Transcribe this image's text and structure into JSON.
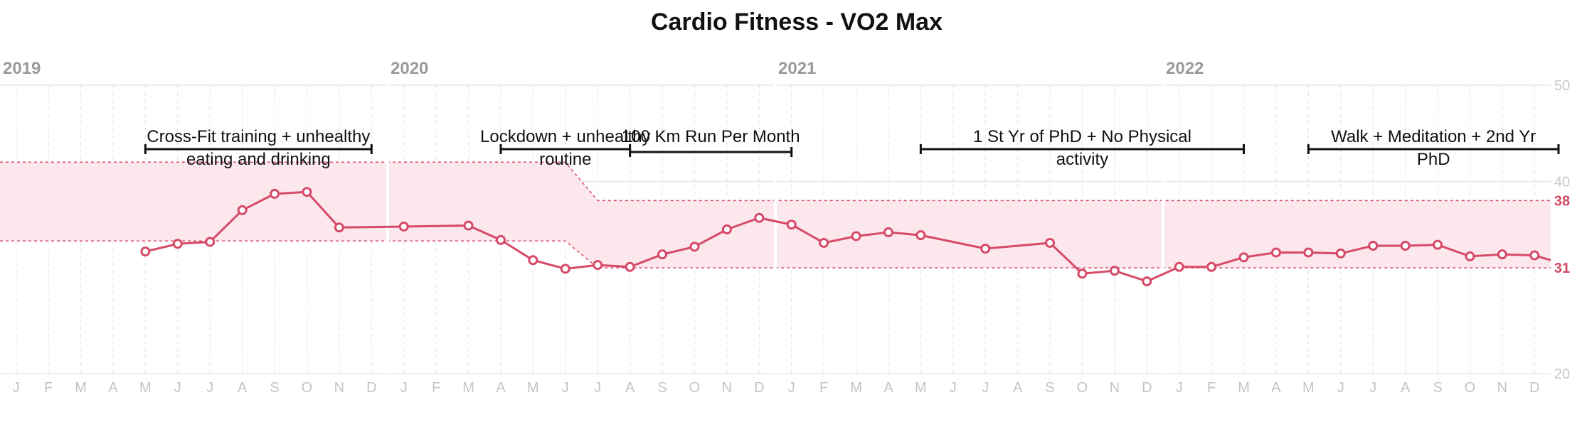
{
  "chart_data": {
    "type": "line",
    "title": "Cardio Fitness - VO2 Max",
    "years": [
      "2019",
      "2020",
      "2021",
      "2022"
    ],
    "month_labels": [
      "J",
      "F",
      "M",
      "A",
      "M",
      "J",
      "J",
      "A",
      "S",
      "O",
      "N",
      "D"
    ],
    "ylim": [
      20,
      50
    ],
    "y_ticks": [
      20,
      40,
      50
    ],
    "band_labels": [
      38,
      31
    ],
    "grid": true,
    "colors": {
      "line": "#d64a68",
      "band": "#fbe7ec",
      "band_edge": "#d64a68",
      "grid": "#e6e6e6",
      "bracket": "#111111"
    },
    "series": [
      {
        "values": [
          {
            "x": "2019-05",
            "y": 32.7
          },
          {
            "x": "2019-06",
            "y": 33.5
          },
          {
            "x": "2019-07",
            "y": 33.7
          },
          {
            "x": "2019-08",
            "y": 37.0
          },
          {
            "x": "2019-09",
            "y": 38.7
          },
          {
            "x": "2019-10",
            "y": 38.9
          },
          {
            "x": "2019-11",
            "y": 35.2
          },
          {
            "x": "2020-01",
            "y": 35.3
          },
          {
            "x": "2020-03",
            "y": 35.4
          },
          {
            "x": "2020-04",
            "y": 33.9
          },
          {
            "x": "2020-05",
            "y": 31.8
          },
          {
            "x": "2020-06",
            "y": 30.9
          },
          {
            "x": "2020-07",
            "y": 31.3
          },
          {
            "x": "2020-08",
            "y": 31.1
          },
          {
            "x": "2020-09",
            "y": 32.4
          },
          {
            "x": "2020-10",
            "y": 33.2
          },
          {
            "x": "2020-11",
            "y": 35.0
          },
          {
            "x": "2020-12",
            "y": 36.2
          },
          {
            "x": "2021-01",
            "y": 35.5
          },
          {
            "x": "2021-02",
            "y": 33.6
          },
          {
            "x": "2021-03",
            "y": 34.3
          },
          {
            "x": "2021-04",
            "y": 34.7
          },
          {
            "x": "2021-05",
            "y": 34.4
          },
          {
            "x": "2021-07",
            "y": 33.0
          },
          {
            "x": "2021-09",
            "y": 33.6
          },
          {
            "x": "2021-10",
            "y": 30.4
          },
          {
            "x": "2021-11",
            "y": 30.7
          },
          {
            "x": "2021-12",
            "y": 29.6
          },
          {
            "x": "2022-01",
            "y": 31.1
          },
          {
            "x": "2022-02",
            "y": 31.1
          },
          {
            "x": "2022-03",
            "y": 32.1
          },
          {
            "x": "2022-04",
            "y": 32.6
          },
          {
            "x": "2022-05",
            "y": 32.6
          },
          {
            "x": "2022-06",
            "y": 32.5
          },
          {
            "x": "2022-07",
            "y": 33.3
          },
          {
            "x": "2022-08",
            "y": 33.3
          },
          {
            "x": "2022-09",
            "y": 33.4
          },
          {
            "x": "2022-10",
            "y": 32.2
          },
          {
            "x": "2022-11",
            "y": 32.4
          },
          {
            "x": "2022-12",
            "y": 32.3
          }
        ]
      }
    ],
    "bands": [
      {
        "x": "2019-01",
        "upper": 42.0,
        "lower": 33.8
      },
      {
        "x": "2020-06",
        "upper": 42.0,
        "lower": 33.8
      },
      {
        "x": "2020-07",
        "upper": 38.0,
        "lower": 31.0
      },
      {
        "x": "2022-12",
        "upper": 38.0,
        "lower": 31.0
      }
    ],
    "annotations": [
      {
        "lines": [
          "Cross-Fit training + unhealthy",
          "eating and drinking"
        ],
        "start": "2019-05",
        "end": "2019-12"
      },
      {
        "lines": [
          "Lockdown + unhealthy",
          "routine"
        ],
        "start": "2020-04",
        "end": "2020-08"
      },
      {
        "lines": [
          "100 Km Run Per Month"
        ],
        "start": "2020-08",
        "end": "2021-01"
      },
      {
        "lines": [
          "1 St Yr of PhD + No Physical",
          "activity"
        ],
        "start": "2021-05",
        "end": "2022-03"
      },
      {
        "lines": [
          "Walk + Meditation + 2nd Yr",
          "PhD"
        ],
        "start": "2022-05",
        "end": "2022-12"
      }
    ]
  }
}
